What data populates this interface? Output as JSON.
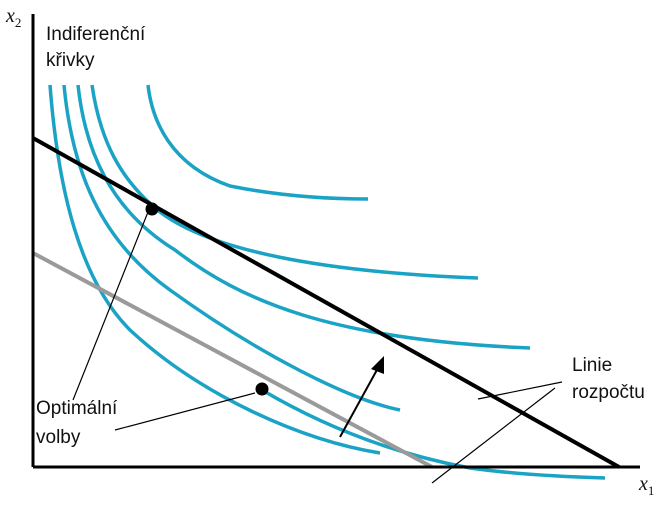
{
  "axes": {
    "x_label": "x",
    "x_sub": "1",
    "y_label": "x",
    "y_sub": "2"
  },
  "labels": {
    "indifference_line1": "Indiferenční",
    "indifference_line2": "křivky",
    "optimal_line1": "Optimální",
    "optimal_line2": "volby",
    "budget_line1": "Linie",
    "budget_line2": "rozpočtu"
  },
  "colors": {
    "indifference_curve": "#1aa3c4",
    "budget_new": "#000000",
    "budget_old": "#9a9a9a",
    "axis": "#000000",
    "point": "#000000"
  }
}
